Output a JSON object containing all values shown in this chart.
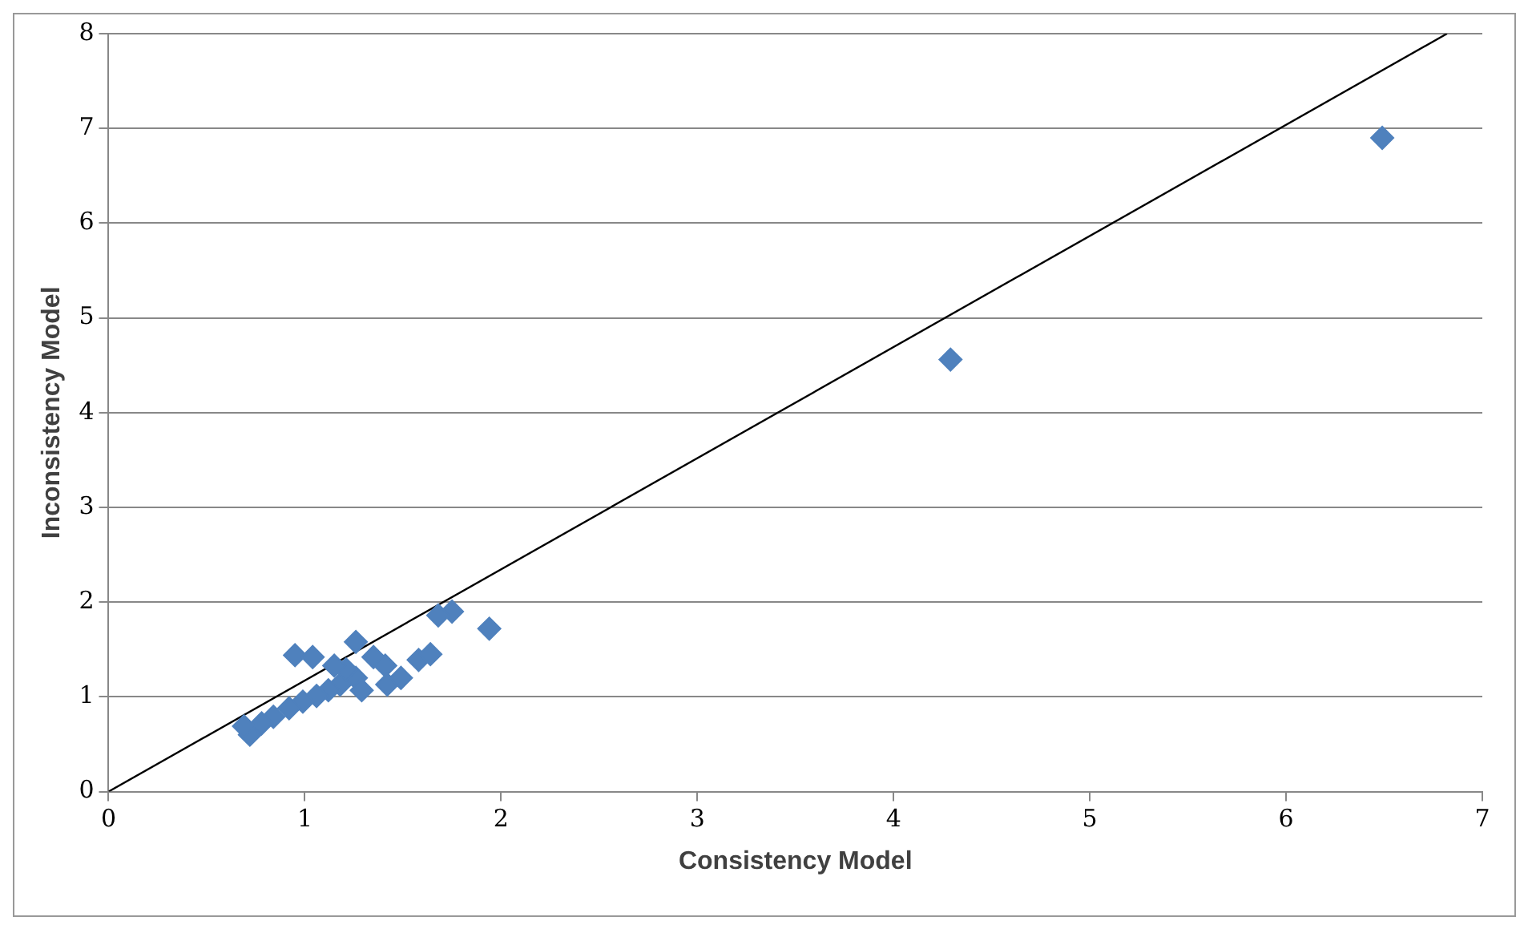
{
  "chart_data": {
    "type": "scatter",
    "xlabel": "Consistency Model",
    "ylabel": "Inconsistency Model",
    "xlim": [
      0,
      7
    ],
    "xticks": [
      0,
      1,
      2,
      3,
      4,
      5,
      6,
      7
    ],
    "ylim": [
      0,
      8
    ],
    "yticks": [
      0,
      1,
      2,
      3,
      4,
      5,
      6,
      7,
      8
    ],
    "grid": "y",
    "series": [
      {
        "color": "#4f81bd",
        "marker": "diamond",
        "x": [
          6.49,
          4.29,
          1.75,
          1.68,
          1.94,
          0.95,
          1.04,
          1.26,
          1.35,
          1.41,
          1.42,
          1.49,
          1.58,
          1.64,
          1.26,
          1.18,
          1.12,
          1.06,
          0.99,
          0.92,
          0.84,
          0.78,
          0.72,
          0.69,
          1.21,
          1.15,
          1.29
        ],
        "values": [
          6.9,
          4.56,
          1.9,
          1.86,
          1.72,
          1.44,
          1.42,
          1.58,
          1.42,
          1.33,
          1.13,
          1.2,
          1.39,
          1.45,
          1.2,
          1.13,
          1.07,
          1.01,
          0.95,
          0.88,
          0.79,
          0.72,
          0.6,
          0.69,
          1.29,
          1.33,
          1.07
        ]
      },
      {
        "type": "line",
        "color": "#000000",
        "marker": "none",
        "line_style": "solid",
        "x": [
          0,
          6.82
        ],
        "values": [
          0,
          8
        ]
      }
    ]
  }
}
